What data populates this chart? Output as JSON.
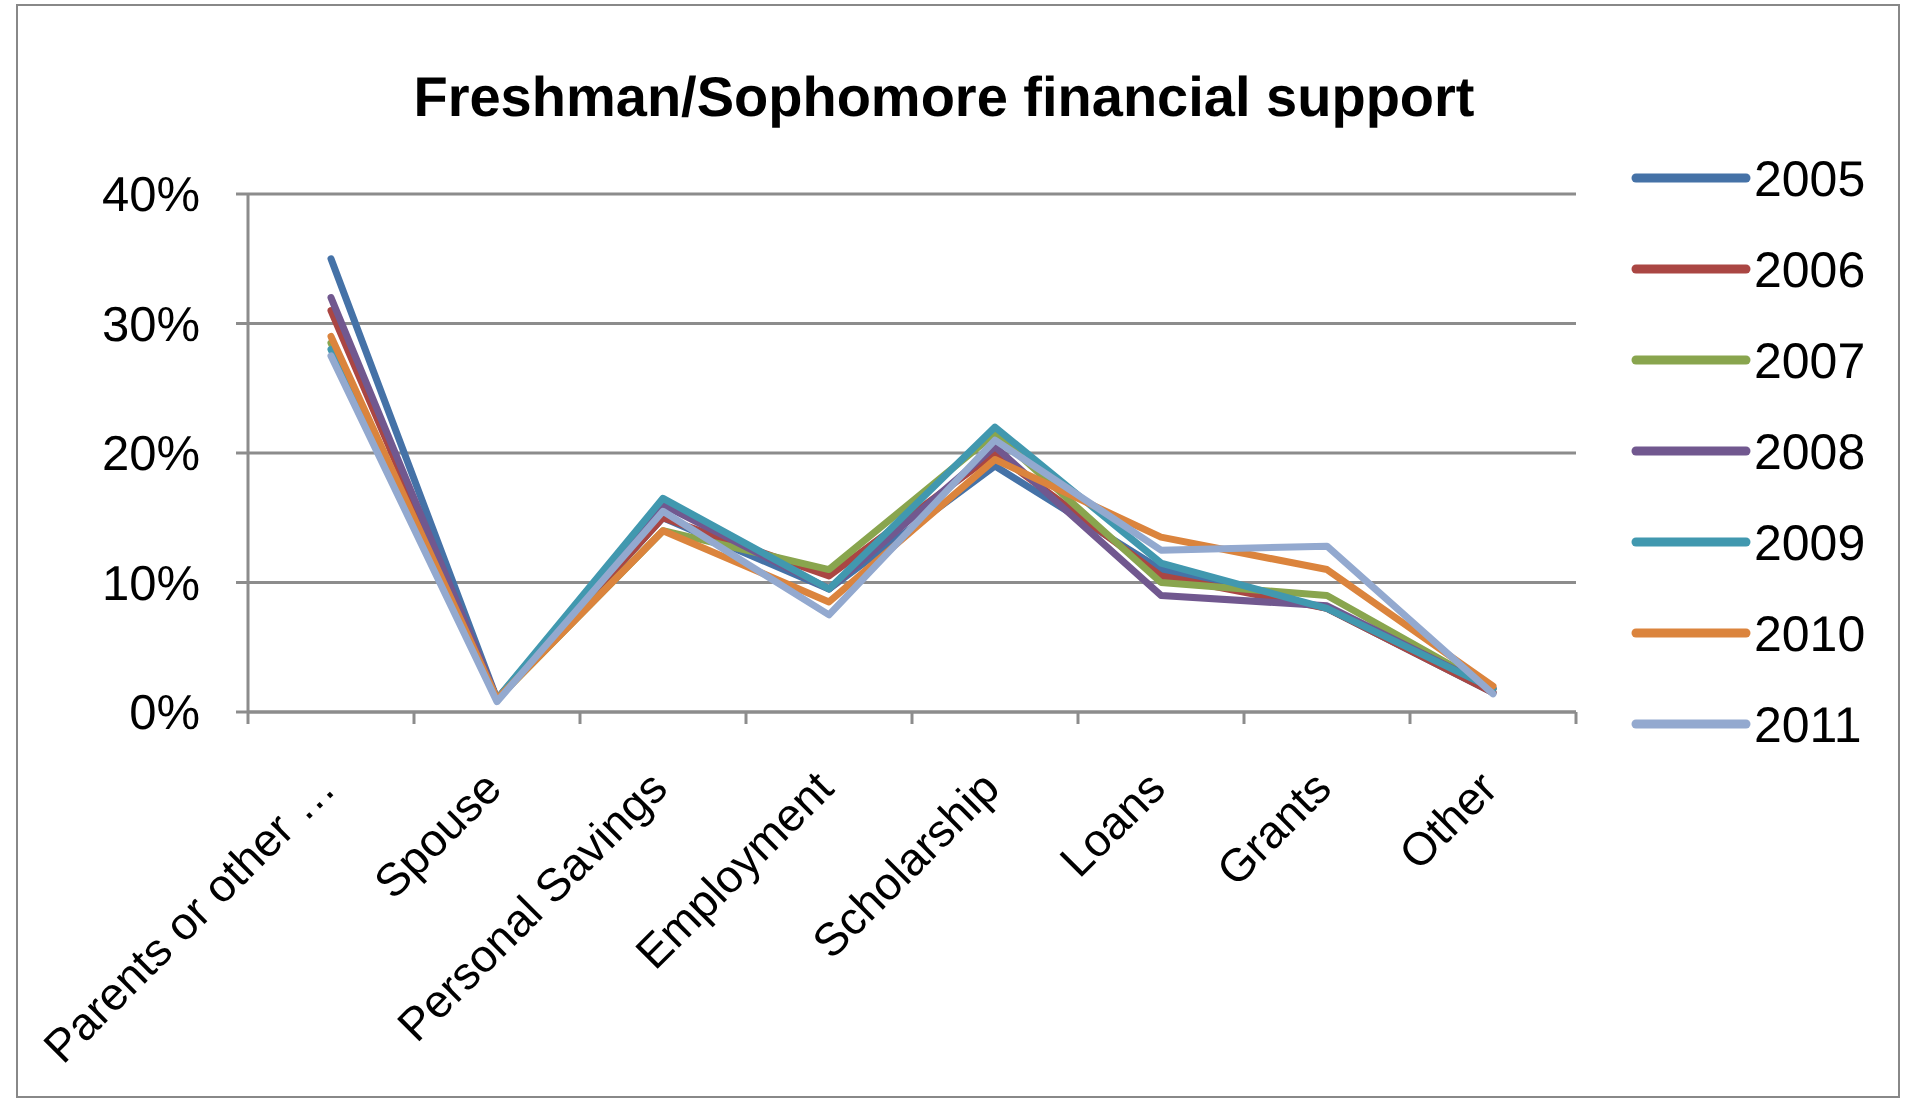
{
  "chart_data": {
    "type": "line",
    "title": "Freshman/Sophomore financial support",
    "categories": [
      "Parents or other …",
      "Spouse",
      "Personal Savings",
      "Employment",
      "Scholarship",
      "Loans",
      "Grants",
      "Other"
    ],
    "series": [
      {
        "name": "2005",
        "color": "#4572a7",
        "values": [
          35,
          1,
          15,
          9.5,
          19,
          11,
          8,
          1.5
        ]
      },
      {
        "name": "2006",
        "color": "#aa4643",
        "values": [
          31,
          1,
          15,
          10.5,
          20,
          10.5,
          8,
          1.5
        ]
      },
      {
        "name": "2007",
        "color": "#89a54e",
        "values": [
          28.5,
          1,
          14,
          11,
          21.5,
          10,
          9,
          1.8
        ]
      },
      {
        "name": "2008",
        "color": "#71588f",
        "values": [
          32,
          1,
          16,
          9.5,
          20.5,
          9,
          8.2,
          1.8
        ]
      },
      {
        "name": "2009",
        "color": "#4198af",
        "values": [
          28,
          1,
          16.5,
          9.5,
          22,
          11.5,
          8,
          1.8
        ]
      },
      {
        "name": "2010",
        "color": "#db843d",
        "values": [
          29,
          1,
          14,
          8.5,
          19.5,
          13.5,
          11,
          2
        ]
      },
      {
        "name": "2011",
        "color": "#93a9cf",
        "values": [
          27.5,
          0.8,
          15.5,
          7.5,
          21,
          12.5,
          12.8,
          1.4
        ]
      }
    ],
    "ylim": [
      0,
      40
    ],
    "yticks": [
      {
        "value": 0,
        "label": "0%"
      },
      {
        "value": 10,
        "label": "10%"
      },
      {
        "value": 20,
        "label": "20%"
      },
      {
        "value": 30,
        "label": "30%"
      },
      {
        "value": 40,
        "label": "40%"
      }
    ],
    "grid": "y",
    "legend": "right",
    "line_style": "solid"
  }
}
